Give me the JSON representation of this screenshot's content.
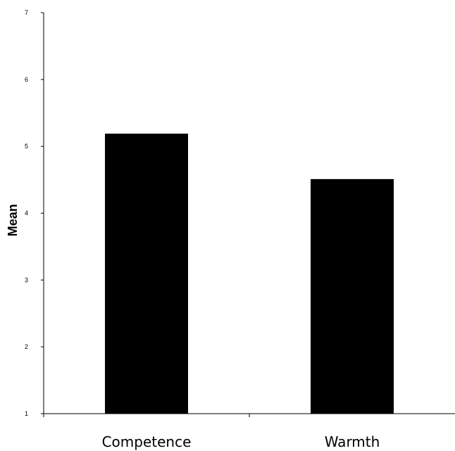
{
  "chart_data": {
    "type": "bar",
    "categories": [
      "Competence",
      "Warmth"
    ],
    "values": [
      5.19,
      4.51
    ],
    "title": "",
    "xlabel": "",
    "ylabel": "Mean",
    "ylim": [
      1,
      7
    ],
    "yticks": [
      1,
      2,
      3,
      4,
      5,
      6,
      7
    ],
    "ytick_labels": [
      "1",
      "2",
      "3",
      "4",
      "5",
      "6",
      "7"
    ],
    "grid": false,
    "legend": "none",
    "bar_color": "#000000",
    "axis_color": "#000000"
  }
}
